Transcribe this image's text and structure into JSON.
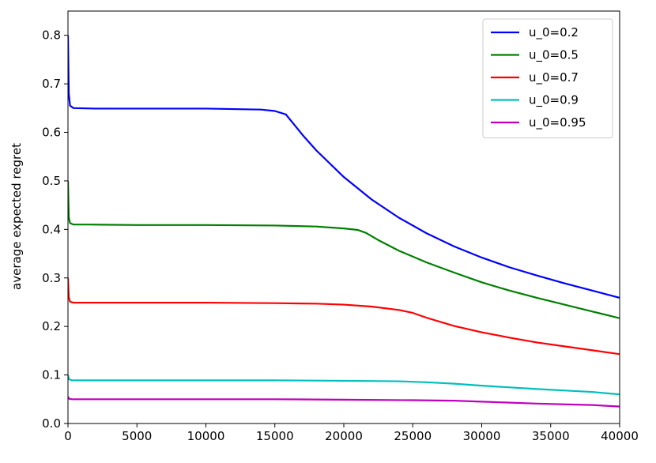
{
  "chart_data": {
    "type": "line",
    "title": "",
    "xlabel": "",
    "ylabel": "average expected regret",
    "xlim": [
      0,
      40000
    ],
    "ylim": [
      0.0,
      0.85
    ],
    "grid": false,
    "legend_position": "top-right",
    "x_ticks": [
      0,
      5000,
      10000,
      15000,
      20000,
      25000,
      30000,
      35000,
      40000
    ],
    "x_tick_labels": [
      "0",
      "5000",
      "10000",
      "15000",
      "20000",
      "25000",
      "30000",
      "35000",
      "40000"
    ],
    "y_ticks": [
      0.0,
      0.1,
      0.2,
      0.3,
      0.4,
      0.5,
      0.6,
      0.7,
      0.8
    ],
    "y_tick_labels": [
      "0.0",
      "0.1",
      "0.2",
      "0.3",
      "0.4",
      "0.5",
      "0.6",
      "0.7",
      "0.8"
    ],
    "series": [
      {
        "name": "u_0=0.2",
        "color": "#0000ff",
        "points": [
          [
            0,
            0.8
          ],
          [
            60,
            0.68
          ],
          [
            150,
            0.655
          ],
          [
            400,
            0.65
          ],
          [
            2000,
            0.649
          ],
          [
            5000,
            0.649
          ],
          [
            10000,
            0.649
          ],
          [
            14000,
            0.647
          ],
          [
            15000,
            0.644
          ],
          [
            15800,
            0.637
          ],
          [
            17000,
            0.595
          ],
          [
            18000,
            0.563
          ],
          [
            20000,
            0.508
          ],
          [
            22000,
            0.462
          ],
          [
            24000,
            0.424
          ],
          [
            26000,
            0.392
          ],
          [
            28000,
            0.365
          ],
          [
            30000,
            0.342
          ],
          [
            32000,
            0.322
          ],
          [
            34000,
            0.305
          ],
          [
            36000,
            0.289
          ],
          [
            38000,
            0.274
          ],
          [
            40000,
            0.259
          ]
        ]
      },
      {
        "name": "u_0=0.5",
        "color": "#008000",
        "points": [
          [
            0,
            0.5
          ],
          [
            60,
            0.425
          ],
          [
            150,
            0.413
          ],
          [
            400,
            0.41
          ],
          [
            1500,
            0.41
          ],
          [
            5000,
            0.409
          ],
          [
            10000,
            0.409
          ],
          [
            15000,
            0.408
          ],
          [
            18000,
            0.406
          ],
          [
            20000,
            0.402
          ],
          [
            21000,
            0.399
          ],
          [
            21600,
            0.393
          ],
          [
            22500,
            0.378
          ],
          [
            24000,
            0.356
          ],
          [
            26000,
            0.332
          ],
          [
            28000,
            0.311
          ],
          [
            30000,
            0.291
          ],
          [
            32000,
            0.274
          ],
          [
            34000,
            0.259
          ],
          [
            36000,
            0.245
          ],
          [
            38000,
            0.231
          ],
          [
            40000,
            0.217
          ]
        ]
      },
      {
        "name": "u_0=0.7",
        "color": "#ff0000",
        "points": [
          [
            0,
            0.3
          ],
          [
            60,
            0.26
          ],
          [
            150,
            0.251
          ],
          [
            400,
            0.249
          ],
          [
            2000,
            0.249
          ],
          [
            10000,
            0.249
          ],
          [
            15000,
            0.248
          ],
          [
            18000,
            0.247
          ],
          [
            20000,
            0.245
          ],
          [
            22000,
            0.241
          ],
          [
            24000,
            0.234
          ],
          [
            25000,
            0.228
          ],
          [
            26000,
            0.218
          ],
          [
            28000,
            0.201
          ],
          [
            30000,
            0.188
          ],
          [
            32000,
            0.177
          ],
          [
            34000,
            0.167
          ],
          [
            36000,
            0.159
          ],
          [
            38000,
            0.151
          ],
          [
            40000,
            0.143
          ]
        ]
      },
      {
        "name": "u_0=0.9",
        "color": "#00bfbf",
        "points": [
          [
            0,
            0.1
          ],
          [
            80,
            0.091
          ],
          [
            300,
            0.089
          ],
          [
            5000,
            0.089
          ],
          [
            10000,
            0.089
          ],
          [
            15000,
            0.089
          ],
          [
            20000,
            0.088
          ],
          [
            24000,
            0.087
          ],
          [
            26000,
            0.085
          ],
          [
            28000,
            0.082
          ],
          [
            30000,
            0.078
          ],
          [
            34000,
            0.071
          ],
          [
            38000,
            0.065
          ],
          [
            40000,
            0.06
          ]
        ]
      },
      {
        "name": "u_0=0.95",
        "color": "#bf00bf",
        "points": [
          [
            0,
            0.055
          ],
          [
            80,
            0.051
          ],
          [
            300,
            0.05
          ],
          [
            5000,
            0.05
          ],
          [
            10000,
            0.05
          ],
          [
            15000,
            0.05
          ],
          [
            20000,
            0.049
          ],
          [
            25000,
            0.048
          ],
          [
            28000,
            0.047
          ],
          [
            30000,
            0.045
          ],
          [
            34000,
            0.041
          ],
          [
            38000,
            0.038
          ],
          [
            40000,
            0.035
          ]
        ]
      }
    ]
  }
}
